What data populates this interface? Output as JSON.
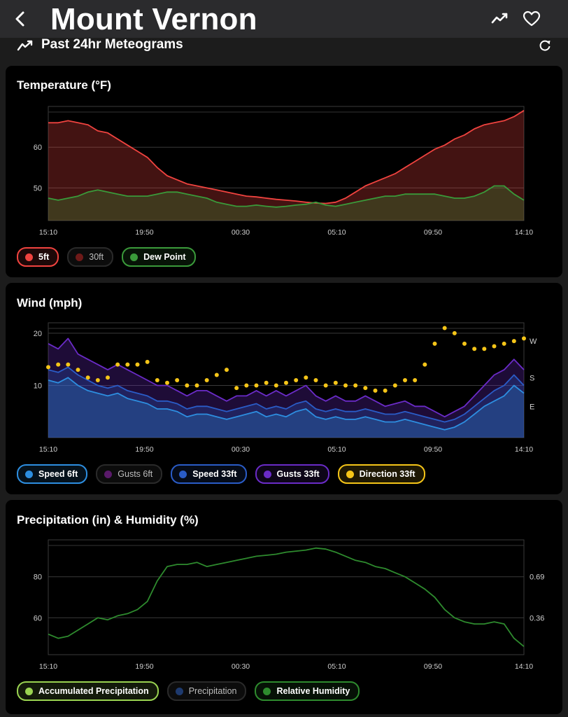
{
  "header": {
    "title": "Mount Vernon",
    "back_icon": "chevron-left-icon",
    "trend_icon": "chart-line-icon",
    "favorite_icon": "heart-outline-icon"
  },
  "section": {
    "title": "Past 24hr Meteograms",
    "icon": "chart-line-icon",
    "refresh_icon": "refresh-icon"
  },
  "cards": [
    {
      "title": "Temperature (°F)",
      "legend": [
        {
          "label": "5ft",
          "color": "#f0433f",
          "active": true
        },
        {
          "label": "30ft",
          "color": "#6e1a19",
          "active": false
        },
        {
          "label": "Dew Point",
          "color": "#3a9a3a",
          "active": true
        }
      ]
    },
    {
      "title": "Wind (mph)",
      "legend": [
        {
          "label": "Speed 6ft",
          "color": "#2d8ee0",
          "active": true
        },
        {
          "label": "Gusts 6ft",
          "color": "#5a1a6a",
          "active": false
        },
        {
          "label": "Speed 33ft",
          "color": "#2a5cc7",
          "active": true
        },
        {
          "label": "Gusts 33ft",
          "color": "#6a2bc7",
          "active": true
        },
        {
          "label": "Direction 33ft",
          "color": "#f5c518",
          "active": true
        }
      ]
    },
    {
      "title": "Precipitation (in) & Humidity (%)",
      "legend": [
        {
          "label": "Accumulated Precipitation",
          "color": "#9ad451",
          "active": true
        },
        {
          "label": "Precipitation",
          "color": "#1e3a6e",
          "active": false
        },
        {
          "label": "Relative Humidity",
          "color": "#2e8b2e",
          "active": true
        }
      ]
    }
  ],
  "chart_data": [
    {
      "type": "area",
      "title": "Temperature (°F)",
      "x_ticks": [
        "15:10",
        "19:50",
        "00:30",
        "05:10",
        "09:50",
        "14:10"
      ],
      "y_ticks": [
        50,
        60
      ],
      "ylim": [
        42,
        70
      ],
      "grid": true,
      "series": [
        {
          "name": "5ft",
          "color": "#f0433f",
          "x": [
            0,
            0.5,
            1,
            1.5,
            2,
            2.5,
            3,
            3.5,
            4,
            4.5,
            5,
            5.5,
            6,
            6.5,
            7,
            7.5,
            8,
            8.5,
            9,
            9.5,
            10,
            10.5,
            11,
            11.5,
            12,
            12.5,
            13,
            13.5,
            14,
            14.5,
            15,
            15.5,
            16,
            16.5,
            17,
            17.5,
            18,
            18.5,
            19,
            19.5,
            20,
            20.5,
            21,
            21.5,
            22,
            22.5,
            23,
            23.5,
            24
          ],
          "values": [
            66,
            66,
            66.5,
            66,
            65.5,
            64,
            63.5,
            62,
            60.5,
            59,
            57.5,
            55,
            53,
            52,
            51,
            50.5,
            50,
            49.5,
            49,
            48.5,
            48,
            47.8,
            47.5,
            47.2,
            47,
            46.8,
            46.5,
            46.3,
            46.2,
            46.5,
            47.5,
            49,
            50.5,
            51.5,
            52.5,
            53.5,
            55,
            56.5,
            58,
            59.5,
            60.5,
            62,
            63,
            64.5,
            65.5,
            66,
            66.5,
            67.5,
            69
          ]
        },
        {
          "name": "Dew Point",
          "color": "#3a9a3a",
          "x": [
            0,
            0.5,
            1,
            1.5,
            2,
            2.5,
            3,
            3.5,
            4,
            4.5,
            5,
            5.5,
            6,
            6.5,
            7,
            7.5,
            8,
            8.5,
            9,
            9.5,
            10,
            10.5,
            11,
            11.5,
            12,
            12.5,
            13,
            13.5,
            14,
            14.5,
            15,
            15.5,
            16,
            16.5,
            17,
            17.5,
            18,
            18.5,
            19,
            19.5,
            20,
            20.5,
            21,
            21.5,
            22,
            22.5,
            23,
            23.5,
            24
          ],
          "values": [
            47.5,
            47,
            47.5,
            48,
            49,
            49.5,
            49,
            48.5,
            48,
            48,
            48,
            48.5,
            49,
            49,
            48.5,
            48,
            47.5,
            46.5,
            46,
            45.5,
            45.5,
            45.8,
            45.5,
            45.3,
            45.5,
            45.8,
            46,
            46.5,
            45.8,
            45.5,
            46,
            46.5,
            47,
            47.5,
            48,
            48,
            48.5,
            48.5,
            48.5,
            48.5,
            48,
            47.5,
            47.5,
            48,
            49,
            50.5,
            50.5,
            48.5,
            47
          ]
        }
      ]
    },
    {
      "type": "area",
      "title": "Wind (mph)",
      "x_ticks": [
        "15:10",
        "19:50",
        "00:30",
        "05:10",
        "09:50",
        "14:10"
      ],
      "y_ticks": [
        10,
        20
      ],
      "y2_ticks": [
        "W",
        "S",
        "E"
      ],
      "ylim": [
        0,
        22
      ],
      "grid": true,
      "series": [
        {
          "name": "Gusts 33ft",
          "color": "#6a2bc7",
          "x": [
            0,
            0.5,
            1,
            1.5,
            2,
            2.5,
            3,
            3.5,
            4,
            4.5,
            5,
            5.5,
            6,
            6.5,
            7,
            7.5,
            8,
            8.5,
            9,
            9.5,
            10,
            10.5,
            11,
            11.5,
            12,
            12.5,
            13,
            13.5,
            14,
            14.5,
            15,
            15.5,
            16,
            16.5,
            17,
            17.5,
            18,
            18.5,
            19,
            19.5,
            20,
            20.5,
            21,
            21.5,
            22,
            22.5,
            23,
            23.5,
            24
          ],
          "values": [
            18,
            17,
            19,
            16,
            15,
            14,
            13,
            14,
            13,
            12,
            11,
            10,
            10,
            9,
            8,
            9,
            9,
            8,
            7,
            8,
            8,
            9,
            8,
            9,
            8,
            9,
            10,
            8,
            7,
            8,
            7,
            7,
            8,
            7,
            6,
            6.5,
            7,
            6,
            6,
            5,
            4,
            5,
            6,
            8,
            10,
            12,
            13,
            15,
            13
          ]
        },
        {
          "name": "Speed 33ft",
          "color": "#2a5cc7",
          "x": [
            0,
            0.5,
            1,
            1.5,
            2,
            2.5,
            3,
            3.5,
            4,
            4.5,
            5,
            5.5,
            6,
            6.5,
            7,
            7.5,
            8,
            8.5,
            9,
            9.5,
            10,
            10.5,
            11,
            11.5,
            12,
            12.5,
            13,
            13.5,
            14,
            14.5,
            15,
            15.5,
            16,
            16.5,
            17,
            17.5,
            18,
            18.5,
            19,
            19.5,
            20,
            20.5,
            21,
            21.5,
            22,
            22.5,
            23,
            23.5,
            24
          ],
          "values": [
            13,
            12.5,
            13.5,
            12,
            11,
            10,
            9.5,
            10,
            9,
            8.5,
            8,
            7,
            7,
            6.5,
            5.5,
            6,
            6,
            5.5,
            5,
            5.5,
            6,
            6.5,
            5.5,
            6,
            5.5,
            6.5,
            7,
            5.5,
            5,
            5.5,
            5,
            5,
            5.5,
            5,
            4.5,
            4.5,
            5,
            4.5,
            4,
            3.5,
            3,
            3.5,
            4.5,
            6,
            7.5,
            9,
            10,
            12,
            10
          ]
        },
        {
          "name": "Speed 6ft",
          "color": "#2d8ee0",
          "x": [
            0,
            0.5,
            1,
            1.5,
            2,
            2.5,
            3,
            3.5,
            4,
            4.5,
            5,
            5.5,
            6,
            6.5,
            7,
            7.5,
            8,
            8.5,
            9,
            9.5,
            10,
            10.5,
            11,
            11.5,
            12,
            12.5,
            13,
            13.5,
            14,
            14.5,
            15,
            15.5,
            16,
            16.5,
            17,
            17.5,
            18,
            18.5,
            19,
            19.5,
            20,
            20.5,
            21,
            21.5,
            22,
            22.5,
            23,
            23.5,
            24
          ],
          "values": [
            11,
            10.5,
            11.5,
            10,
            9,
            8.5,
            8,
            8.5,
            7.5,
            7,
            6.5,
            5.5,
            5.5,
            5,
            4,
            4.5,
            4.5,
            4,
            3.5,
            4,
            4.5,
            5,
            4,
            4.5,
            4,
            5,
            5.5,
            4,
            3.5,
            4,
            3.5,
            3.5,
            4,
            3.5,
            3,
            3,
            3.5,
            3,
            2.5,
            2,
            1.5,
            2,
            3,
            4.5,
            6,
            7,
            8,
            10,
            8.5
          ]
        },
        {
          "name": "Direction 33ft",
          "color": "#f5c518",
          "kind": "scatter",
          "x": [
            0,
            0.5,
            1,
            1.5,
            2,
            2.5,
            3,
            3.5,
            4,
            4.5,
            5,
            5.5,
            6,
            6.5,
            7,
            7.5,
            8,
            8.5,
            9,
            9.5,
            10,
            10.5,
            11,
            11.5,
            12,
            12.5,
            13,
            13.5,
            14,
            14.5,
            15,
            15.5,
            16,
            16.5,
            17,
            17.5,
            18,
            18.5,
            19,
            19.5,
            20,
            20.5,
            21,
            21.5,
            22,
            22.5,
            23,
            23.5,
            24
          ],
          "values": [
            13.5,
            14,
            14,
            13,
            11.5,
            11,
            11.5,
            14,
            14,
            14,
            14.5,
            11,
            10.5,
            11,
            10,
            10,
            11,
            12,
            13,
            9.5,
            10,
            10,
            10.5,
            10,
            10.5,
            11,
            11.5,
            11,
            10,
            10.5,
            10,
            10,
            9.5,
            9,
            9,
            10,
            11,
            11,
            14,
            18,
            21,
            20,
            18,
            17,
            17,
            17.5,
            18,
            18.5,
            19
          ]
        }
      ]
    },
    {
      "type": "line",
      "title": "Precipitation (in) & Humidity (%)",
      "x_ticks": [
        "15:10",
        "19:50",
        "00:30",
        "05:10",
        "09:50",
        "14:10"
      ],
      "y_ticks": [
        60,
        80
      ],
      "y2_ticks": [
        "0.69",
        "0.36"
      ],
      "ylim": [
        42,
        98
      ],
      "grid": true,
      "series": [
        {
          "name": "Relative Humidity",
          "color": "#2e8b2e",
          "x": [
            0,
            0.5,
            1,
            1.5,
            2,
            2.5,
            3,
            3.5,
            4,
            4.5,
            5,
            5.5,
            6,
            6.5,
            7,
            7.5,
            8,
            8.5,
            9,
            9.5,
            10,
            10.5,
            11,
            11.5,
            12,
            12.5,
            13,
            13.5,
            14,
            14.5,
            15,
            15.5,
            16,
            16.5,
            17,
            17.5,
            18,
            18.5,
            19,
            19.5,
            20,
            20.5,
            21,
            21.5,
            22,
            22.5,
            23,
            23.5,
            24
          ],
          "values": [
            52,
            50,
            51,
            54,
            57,
            60,
            59,
            61,
            62,
            64,
            68,
            78,
            85,
            86,
            86,
            87,
            85,
            86,
            87,
            88,
            89,
            90,
            90.5,
            91,
            92,
            92.5,
            93,
            94,
            93.5,
            92,
            90,
            88,
            87,
            85,
            84,
            82,
            80,
            77,
            74,
            70,
            64,
            60,
            58,
            57,
            57,
            58,
            57,
            50,
            46
          ]
        },
        {
          "name": "Accumulated Precipitation",
          "color": "#9ad451",
          "x": [
            0,
            24
          ],
          "values": [
            0,
            0
          ]
        }
      ]
    }
  ]
}
